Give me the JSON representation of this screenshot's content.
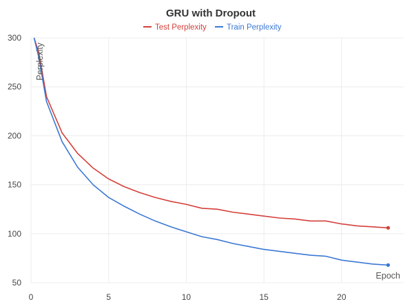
{
  "chart_data": {
    "type": "line",
    "title": "GRU with Dropout",
    "xlabel": "Epoch",
    "ylabel": "Perplexity",
    "xlim": [
      0,
      24
    ],
    "ylim": [
      50,
      300
    ],
    "xticks": [
      0,
      5,
      10,
      15,
      20
    ],
    "yticks": [
      50,
      100,
      150,
      200,
      250,
      300
    ],
    "grid": true,
    "legend": "top-center",
    "series": [
      {
        "name": "Test Perplexity",
        "color": "#d43f3a",
        "x": [
          0.2,
          0.5,
          1,
          2,
          3,
          4,
          5,
          6,
          7,
          8,
          9,
          10,
          11,
          12,
          13,
          14,
          15,
          16,
          17,
          18,
          19,
          20,
          21,
          22,
          23
        ],
        "values": [
          300,
          285,
          240,
          203,
          182,
          167,
          156,
          148,
          142,
          137,
          133,
          130,
          126,
          125,
          122,
          120,
          118,
          116,
          115,
          113,
          113,
          110,
          108,
          107,
          106
        ]
      },
      {
        "name": "Train Perplexity",
        "color": "#3a78d4",
        "x": [
          0.2,
          0.5,
          1,
          2,
          3,
          4,
          5,
          6,
          7,
          8,
          9,
          10,
          11,
          12,
          13,
          14,
          15,
          16,
          17,
          18,
          19,
          20,
          21,
          22,
          23
        ],
        "values": [
          300,
          280,
          235,
          194,
          168,
          150,
          137,
          128,
          120,
          113,
          107,
          102,
          97,
          94,
          90,
          87,
          84,
          82,
          80,
          78,
          77,
          73,
          71,
          69,
          68
        ]
      }
    ]
  }
}
